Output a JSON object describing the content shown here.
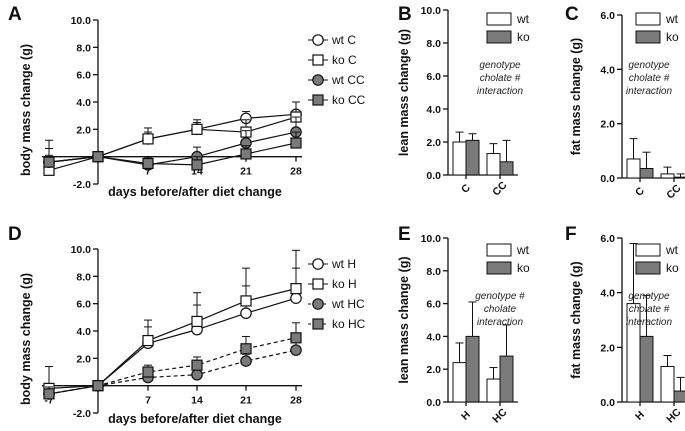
{
  "chart_data": [
    {
      "panel": "A",
      "type": "line",
      "xlabel": "days before/after diet change",
      "ylabel": "body mass change  (g)",
      "x": [
        -7,
        0,
        7,
        14,
        21,
        28
      ],
      "xticks": [
        "-7",
        "7",
        "14",
        "21",
        "28"
      ],
      "yticks": [
        "10.0",
        "8.0",
        "6.0",
        "4.0",
        "2.0",
        "-2.0"
      ],
      "ylim": [
        -2,
        10
      ],
      "series": [
        {
          "name": "wt C",
          "marker": "circle",
          "fill": "white",
          "dashed": false,
          "values": [
            -0.4,
            0,
            1.3,
            2.0,
            2.8,
            3.1
          ],
          "err": [
            0.5,
            0,
            0.5,
            0.5,
            0.5,
            0.9
          ]
        },
        {
          "name": "ko C",
          "marker": "square",
          "fill": "white",
          "dashed": false,
          "values": [
            -1.0,
            0,
            1.3,
            2.0,
            1.8,
            2.9
          ],
          "err": [
            0.6,
            0,
            0.8,
            0.7,
            0.9,
            1.1
          ]
        },
        {
          "name": "wt CC",
          "marker": "circle",
          "fill": "gray",
          "dashed": false,
          "values": [
            -0.4,
            0,
            -0.6,
            0.0,
            1.0,
            1.8
          ],
          "err": [
            1.6,
            0,
            0.4,
            0.7,
            0.9,
            1.1
          ]
        },
        {
          "name": "ko CC",
          "marker": "square",
          "fill": "gray",
          "dashed": false,
          "values": [
            -0.4,
            0,
            -0.5,
            -0.6,
            0.2,
            1.0
          ],
          "err": [
            1.0,
            0,
            0.4,
            0.6,
            0.6,
            0.8
          ]
        }
      ]
    },
    {
      "panel": "B",
      "type": "bar",
      "ylabel": "lean mass change  (g)",
      "ylim": [
        0,
        10
      ],
      "yticks": [
        "10.0",
        "8.0",
        "6.0",
        "4.0",
        "2.0",
        "0.0"
      ],
      "categories": [
        "C",
        "CC"
      ],
      "annotation": [
        "genotype",
        "cholate #",
        "interaction"
      ],
      "series": [
        {
          "name": "wt",
          "fill": "white",
          "values": [
            2.0,
            1.3
          ],
          "err": [
            0.6,
            0.6
          ]
        },
        {
          "name": "ko",
          "fill": "gray",
          "values": [
            2.1,
            0.8
          ],
          "err": [
            0.4,
            1.3
          ]
        }
      ]
    },
    {
      "panel": "C",
      "type": "bar",
      "ylabel": "fat mass change  (g)",
      "ylim": [
        0,
        6
      ],
      "yticks": [
        "6.0",
        "4.0",
        "2.0",
        "0.0"
      ],
      "categories": [
        "C",
        "CC"
      ],
      "annotation": [
        "genotype",
        "cholate #",
        "interaction"
      ],
      "series": [
        {
          "name": "wt",
          "fill": "white",
          "values": [
            0.7,
            0.15
          ],
          "err": [
            0.75,
            0.25
          ]
        },
        {
          "name": "ko",
          "fill": "gray",
          "values": [
            0.35,
            0.03
          ],
          "err": [
            0.6,
            0.12
          ]
        }
      ]
    },
    {
      "panel": "D",
      "type": "line",
      "xlabel": "days before/after diet change",
      "ylabel": "body mass change  (g)",
      "x": [
        -7,
        0,
        7,
        14,
        21,
        28
      ],
      "xticks": [
        "-7",
        "7",
        "14",
        "21",
        "28"
      ],
      "yticks": [
        "10.0",
        "8.0",
        "6.0",
        "4.0",
        "2.0",
        "-2.0"
      ],
      "ylim": [
        -2,
        10
      ],
      "series": [
        {
          "name": "wt H",
          "marker": "circle",
          "fill": "white",
          "dashed": false,
          "values": [
            -0.6,
            0,
            3.1,
            4.1,
            5.3,
            6.4
          ],
          "err": [
            0.6,
            0,
            1.2,
            1.8,
            2.0,
            2.2
          ]
        },
        {
          "name": "ko H",
          "marker": "square",
          "fill": "white",
          "dashed": false,
          "values": [
            -0.2,
            0,
            3.3,
            4.7,
            6.2,
            7.1
          ],
          "err": [
            1.6,
            0,
            1.5,
            2.1,
            2.4,
            2.8
          ]
        },
        {
          "name": "wt HC",
          "marker": "circle",
          "fill": "gray",
          "dashed": true,
          "values": [
            -0.6,
            0,
            0.6,
            0.8,
            1.8,
            2.6
          ],
          "err": [
            0.5,
            0,
            0.3,
            0.5,
            0.5,
            0.6
          ]
        },
        {
          "name": "ko HC",
          "marker": "square",
          "fill": "gray",
          "dashed": true,
          "values": [
            -0.6,
            0,
            1.0,
            1.5,
            2.7,
            3.5
          ],
          "err": [
            0.5,
            0,
            0.5,
            0.6,
            0.9,
            1.1
          ]
        }
      ]
    },
    {
      "panel": "E",
      "type": "bar",
      "ylabel": "lean mass change  (g)",
      "ylim": [
        0,
        10
      ],
      "yticks": [
        "10.0",
        "8.0",
        "6.0",
        "4.0",
        "2.0",
        "0.0"
      ],
      "categories": [
        "H",
        "HC"
      ],
      "annotation": [
        "genotype #",
        "cholate",
        "interaction"
      ],
      "series": [
        {
          "name": "wt",
          "fill": "white",
          "values": [
            2.4,
            1.4
          ],
          "err": [
            1.2,
            0.7
          ]
        },
        {
          "name": "ko",
          "fill": "gray",
          "values": [
            4.0,
            2.8
          ],
          "err": [
            2.1,
            1.9
          ]
        }
      ]
    },
    {
      "panel": "F",
      "type": "bar",
      "ylabel": "fat mass change  (g)",
      "ylim": [
        0,
        6
      ],
      "yticks": [
        "6.0",
        "4.0",
        "2.0",
        "0.0"
      ],
      "categories": [
        "H",
        "HC"
      ],
      "annotation": [
        "genotype",
        "cholate #",
        "interaction"
      ],
      "series": [
        {
          "name": "wt",
          "fill": "white",
          "values": [
            3.6,
            1.3
          ],
          "err": [
            2.2,
            0.4
          ]
        },
        {
          "name": "ko",
          "fill": "gray",
          "values": [
            2.4,
            0.4
          ],
          "err": [
            1.5,
            0.5
          ]
        }
      ]
    }
  ],
  "colors": {
    "gray": "#7a7a7a",
    "white": "#ffffff",
    "ink": "#111111"
  }
}
